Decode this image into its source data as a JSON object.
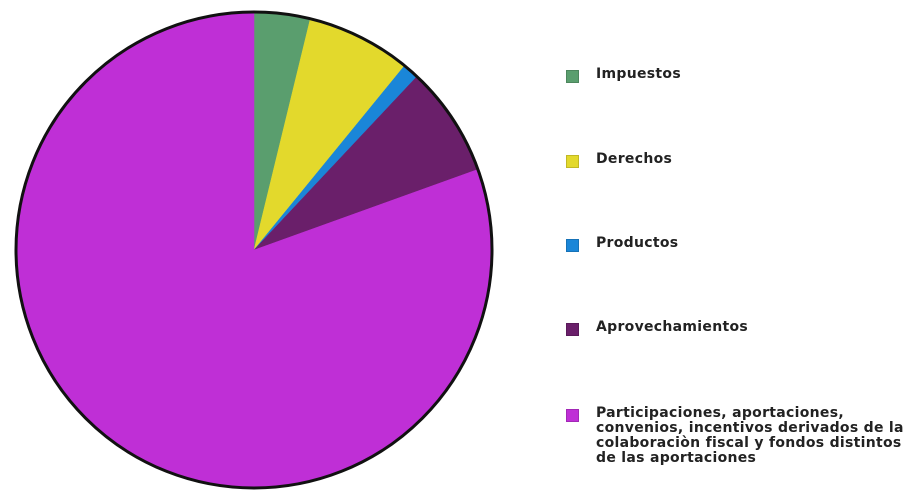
{
  "chart_data": {
    "type": "pie",
    "title": "",
    "legend_position": "right",
    "series": [
      {
        "name": "Impuestos",
        "value": 3.8,
        "color": "#5a9e6e"
      },
      {
        "name": "Derechos",
        "value": 7.1,
        "color": "#e3d92c"
      },
      {
        "name": "Productos",
        "value": 1.1,
        "color": "#1a86d8"
      },
      {
        "name": "Aprovechamientos",
        "value": 7.5,
        "color": "#6a1f6a"
      },
      {
        "name": "Participaciones, aportaciones, convenios, incentivos derivados de la colaboración fiscal y fondos distintos de las aportaciones",
        "value": 80.5,
        "color": "#bf2fd6"
      }
    ]
  },
  "legend": {
    "items": [
      {
        "label": "Impuestos",
        "color": "#5a9e6e"
      },
      {
        "label": "Derechos",
        "color": "#e3d92c"
      },
      {
        "label": "Productos",
        "color": "#1a86d8"
      },
      {
        "label": "Aprovechamientos",
        "color": "#6a1f6a"
      },
      {
        "label": "Participaciones, aportaciones,\nconvenios, incentivos derivados de la\ncolaboraciòn fiscal y fondos distintos\nde las aportaciones",
        "color": "#bf2fd6"
      }
    ]
  }
}
